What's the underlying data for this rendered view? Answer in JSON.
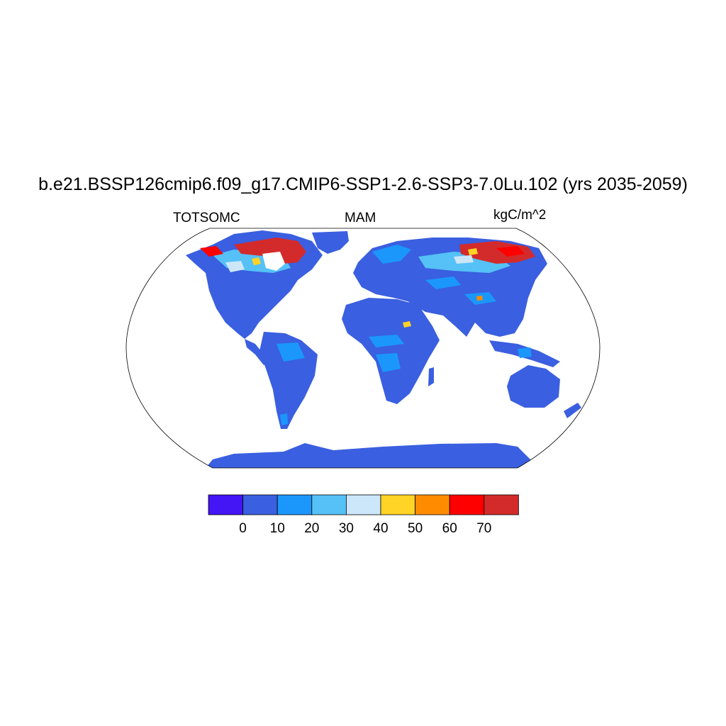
{
  "title": "b.e21.BSSP126cmip6.f09_g17.CMIP6-SSP1-2.6-SSP3-7.0Lu.102 (yrs 2035-2059)",
  "subtitle_left": "TOTSOMC",
  "subtitle_center": "MAM",
  "subtitle_right": "kgC/m^2",
  "colorbar": {
    "colors": [
      "#4415f5",
      "#3a5fe0",
      "#1b97fb",
      "#55c1f6",
      "#cce7fa",
      "#ffd426",
      "#ff8c00",
      "#ff0000",
      "#d32b2b"
    ],
    "labels": [
      "0",
      "10",
      "20",
      "30",
      "40",
      "50",
      "60",
      "70"
    ]
  },
  "map": {
    "projection": "Robinson",
    "ocean_color": "#ffffff",
    "land_base_color": "#3a5fe0"
  }
}
